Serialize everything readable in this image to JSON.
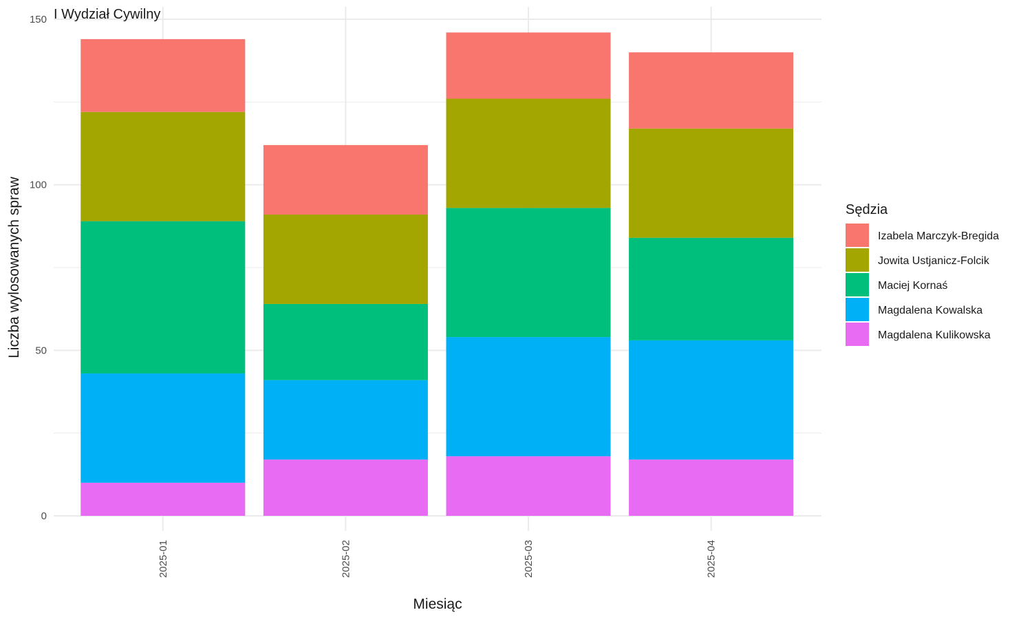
{
  "chart_data": {
    "type": "bar",
    "stacked": true,
    "title": "I Wydział Cywilny",
    "xlabel": "Miesiąc",
    "ylabel": "Liczba wylosowanych spraw",
    "ylim": [
      0,
      150
    ],
    "yticks": [
      0,
      50,
      100,
      150
    ],
    "grid": true,
    "categories": [
      "2025-01",
      "2025-02",
      "2025-03",
      "2025-04"
    ],
    "legend_title": "Sędzia",
    "legend_position": "right",
    "series": [
      {
        "name": "Izabela Marczyk-Bregida",
        "color": "#F8766D",
        "values": [
          22,
          21,
          20,
          23
        ]
      },
      {
        "name": "Jowita Ustjanicz-Folcik",
        "color": "#A3A500",
        "values": [
          33,
          27,
          33,
          33
        ]
      },
      {
        "name": "Maciej Kornaś",
        "color": "#00BF7D",
        "values": [
          46,
          23,
          39,
          31
        ]
      },
      {
        "name": "Magdalena Kowalska",
        "color": "#00B0F6",
        "values": [
          33,
          24,
          36,
          36
        ]
      },
      {
        "name": "Magdalena Kulikowska",
        "color": "#E76BF3",
        "values": [
          10,
          17,
          18,
          17
        ]
      }
    ]
  }
}
